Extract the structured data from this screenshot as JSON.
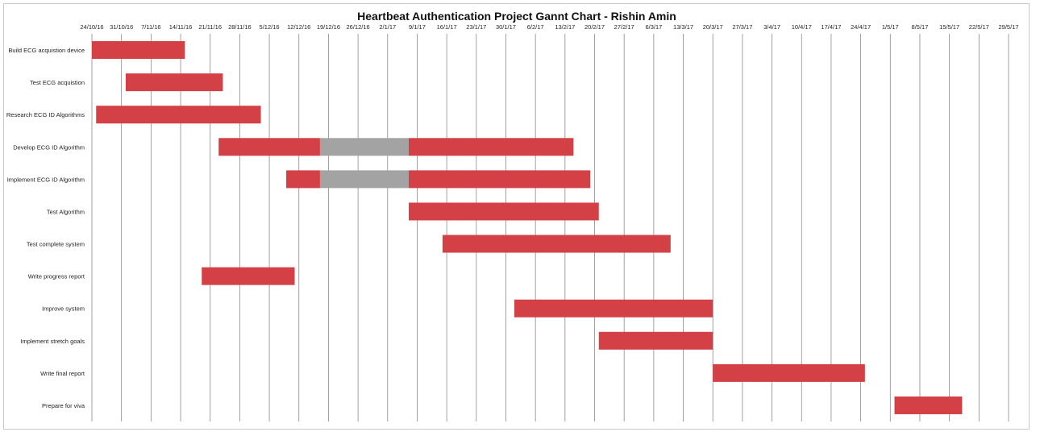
{
  "chart_data": {
    "type": "gantt",
    "title": "Heartbeat Authentication Project Gannt Chart - Rishin Amin",
    "x_tick_labels": [
      "24/10/16",
      "31/10/16",
      "7/11/16",
      "14/11/16",
      "21/11/16",
      "28/11/16",
      "5/12/16",
      "12/12/16",
      "19/12/16",
      "26/12/16",
      "2/1/17",
      "9/1/17",
      "16/1/17",
      "23/1/17",
      "30/1/17",
      "6/2/17",
      "13/2/17",
      "20/2/17",
      "27/2/17",
      "6/3/17",
      "13/3/17",
      "20/3/17",
      "27/3/17",
      "3/4/17",
      "10/4/17",
      "17/4/17",
      "24/4/17",
      "1/5/17",
      "8/5/17",
      "15/5/17",
      "22/5/17",
      "29/5/17"
    ],
    "xlim": [
      "2016-10-24",
      "2017-05-29"
    ],
    "grid": "vertical",
    "colors": {
      "task": "#d34045",
      "break": "#a3a3a3",
      "grid": "#8a8a8a"
    },
    "tasks": [
      {
        "name": "Build ECG acquistion device",
        "segments": [
          {
            "start": "2016-10-24",
            "end": "2016-11-15",
            "kind": "task"
          }
        ]
      },
      {
        "name": "Test ECG acquistion",
        "segments": [
          {
            "start": "2016-11-01",
            "end": "2016-11-24",
            "kind": "task"
          }
        ]
      },
      {
        "name": "Research ECG ID Algorithms",
        "segments": [
          {
            "start": "2016-10-25",
            "end": "2016-12-03",
            "kind": "task"
          }
        ]
      },
      {
        "name": "Develop ECG ID Algorithm",
        "segments": [
          {
            "start": "2016-11-23",
            "end": "2016-12-17",
            "kind": "task"
          },
          {
            "start": "2016-12-17",
            "end": "2017-01-07",
            "kind": "break"
          },
          {
            "start": "2017-01-07",
            "end": "2017-02-15",
            "kind": "task"
          }
        ]
      },
      {
        "name": "Implement ECG ID Algorithm",
        "segments": [
          {
            "start": "2016-12-09",
            "end": "2016-12-17",
            "kind": "task"
          },
          {
            "start": "2016-12-17",
            "end": "2017-01-07",
            "kind": "break"
          },
          {
            "start": "2017-01-07",
            "end": "2017-02-19",
            "kind": "task"
          }
        ]
      },
      {
        "name": "Test Algorithm",
        "segments": [
          {
            "start": "2017-01-07",
            "end": "2017-02-21",
            "kind": "task"
          }
        ]
      },
      {
        "name": "Test complete system",
        "segments": [
          {
            "start": "2017-01-15",
            "end": "2017-03-10",
            "kind": "task"
          }
        ]
      },
      {
        "name": "Write progress report",
        "segments": [
          {
            "start": "2016-11-19",
            "end": "2016-12-11",
            "kind": "task"
          }
        ]
      },
      {
        "name": "Improve system",
        "segments": [
          {
            "start": "2017-02-01",
            "end": "2017-03-20",
            "kind": "task"
          }
        ]
      },
      {
        "name": "Implement stretch goals",
        "segments": [
          {
            "start": "2017-02-21",
            "end": "2017-03-20",
            "kind": "task"
          }
        ]
      },
      {
        "name": "Write final report",
        "segments": [
          {
            "start": "2017-03-20",
            "end": "2017-04-25",
            "kind": "task"
          }
        ]
      },
      {
        "name": "Prepare for viva",
        "segments": [
          {
            "start": "2017-05-02",
            "end": "2017-05-18",
            "kind": "task"
          }
        ]
      }
    ]
  }
}
